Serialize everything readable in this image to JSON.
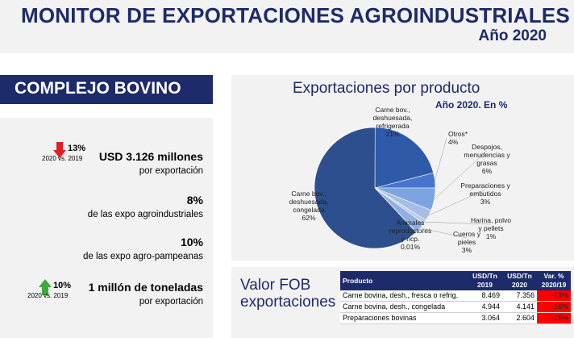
{
  "header": {
    "title": "MONITOR DE EXPORTACIONES AGROINDUSTRIALES",
    "subtitle": "Año 2020"
  },
  "section": {
    "title": "COMPLEJO BOVINO"
  },
  "stats": [
    {
      "trend_pct": "13%",
      "trend_dir": "down",
      "trend_cmp": "2020 vs. 2019",
      "main": "USD 3.126 millones",
      "desc": "por exportación"
    },
    {
      "main": "8%",
      "desc": "de las expo agroindustriales"
    },
    {
      "main": "10%",
      "desc": "de las expo agro-pampeanas"
    },
    {
      "trend_pct": "10%",
      "trend_dir": "up",
      "trend_cmp": "2020 vs. 2019",
      "main": "1 millón de toneladas",
      "desc": "por exportación"
    }
  ],
  "chart_data": {
    "type": "pie",
    "title": "Exportaciones por producto",
    "subtitle": "Año 2020. En %",
    "slices": [
      {
        "label": [
          "Carne bov.,",
          "deshuesada,",
          "refrigerada"
        ],
        "value_label": "21%",
        "value": 21,
        "color": "#2f5aa8"
      },
      {
        "label": [
          "Otros*"
        ],
        "value_label": "4%",
        "value": 4,
        "color": "#4676cc"
      },
      {
        "label": [
          "Despojos,",
          "menudencias y",
          "grasas"
        ],
        "value_label": "6%",
        "value": 6,
        "color": "#7da3e0"
      },
      {
        "label": [
          "Preparaciones y",
          "embutidos"
        ],
        "value_label": "3%",
        "value": 3,
        "color": "#a6bde4"
      },
      {
        "label": [
          "Harina, polvo",
          "y pellets"
        ],
        "value_label": "1%",
        "value": 1,
        "color": "#bccbe7"
      },
      {
        "label": [
          "Cueros y",
          "pieles"
        ],
        "value_label": "3%",
        "value": 3,
        "color": "#93aee0"
      },
      {
        "label": [
          "Animales",
          "reproductores",
          "y ncp."
        ],
        "value_label": "0,01%",
        "value": 0.01,
        "color": "#6d8fcf"
      },
      {
        "label": [
          "Carne bov.,",
          "deshuesada,",
          "congelada"
        ],
        "value_label": "62%",
        "value": 62,
        "color": "#2d4f8d"
      }
    ]
  },
  "fob": {
    "title_line1": "Valor FOB",
    "title_line2": "exportaciones",
    "headers": {
      "product": "Producto",
      "y1_a": "USD/Tn",
      "y1_b": "2019",
      "y2_a": "USD/Tn",
      "y2_b": "2020",
      "var_a": "Var. %",
      "var_b": "2020/19"
    },
    "rows": [
      {
        "product": "Carne bovina, desh., fresca o refrig.",
        "v2019": "8.469",
        "v2020": "7.356",
        "var": "-13%"
      },
      {
        "product": "Carne bovina, desh., congelada",
        "v2019": "4.944",
        "v2020": "4.141",
        "var": "-16%"
      },
      {
        "product": "Preparaciones bovinas",
        "v2019": "3.064",
        "v2020": "2.604",
        "var": "-15%"
      }
    ]
  }
}
